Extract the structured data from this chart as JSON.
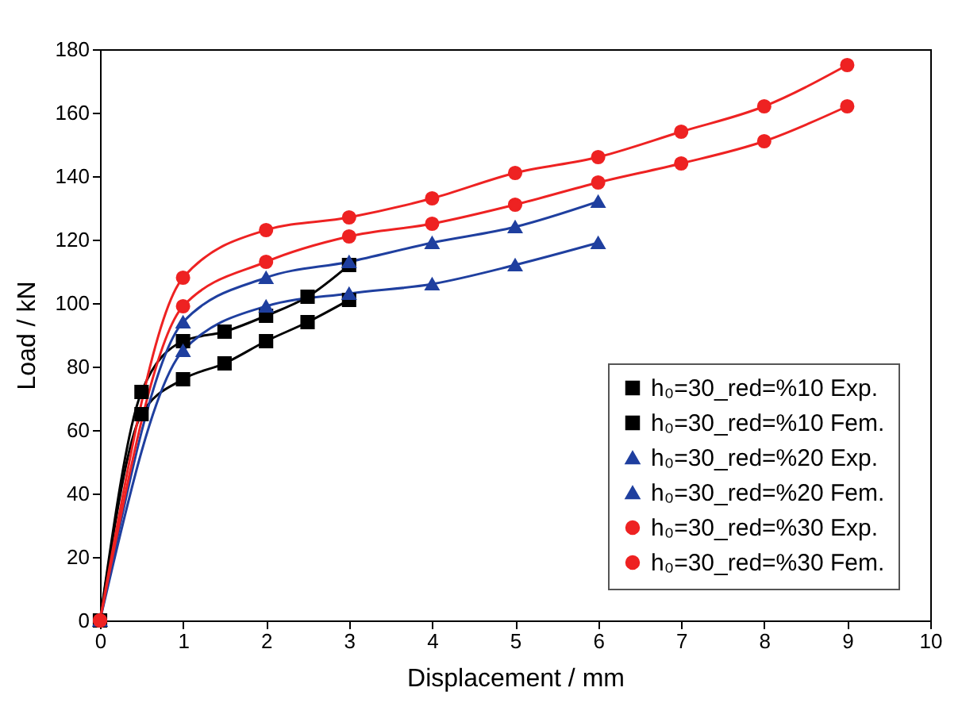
{
  "chart_data": {
    "type": "line",
    "xlabel": "Displacement / mm",
    "ylabel": "Load / kN",
    "xlim": [
      0,
      10
    ],
    "xticks": [
      0,
      1,
      2,
      3,
      4,
      5,
      6,
      7,
      8,
      9,
      10
    ],
    "ylim": [
      0,
      180
    ],
    "yticks": [
      0,
      20,
      40,
      60,
      80,
      100,
      120,
      140,
      160,
      180
    ],
    "grid": false,
    "legend": "bottom right",
    "line_style": "solid",
    "series": [
      {
        "name": "h₀=30_red=%10 Exp.",
        "color": "#000000",
        "marker": "square",
        "x": [
          0,
          0.5,
          1,
          1.5,
          2,
          2.5,
          3
        ],
        "values": [
          0,
          65,
          76,
          81,
          88,
          94,
          101
        ]
      },
      {
        "name": "h₀=30_red=%10 Fem.",
        "color": "#000000",
        "marker": "square",
        "x": [
          0,
          0.5,
          1,
          1.5,
          2,
          2.5,
          3
        ],
        "values": [
          0,
          72,
          88,
          91,
          96,
          102,
          112
        ]
      },
      {
        "name": "h₀=30_red=%20 Exp.",
        "color": "#1f3f9f",
        "marker": "triangle",
        "x": [
          0,
          1,
          2,
          3,
          4,
          5,
          6
        ],
        "values": [
          0,
          85,
          99,
          103,
          106,
          112,
          119
        ]
      },
      {
        "name": "h₀=30_red=%20 Fem.",
        "color": "#1f3f9f",
        "marker": "triangle",
        "x": [
          0,
          1,
          2,
          3,
          4,
          5,
          6
        ],
        "values": [
          0,
          94,
          108,
          113,
          119,
          124,
          132
        ]
      },
      {
        "name": "h₀=30_red=%30 Exp.",
        "color": "#ee2222",
        "marker": "circle",
        "x": [
          0,
          1,
          2,
          3,
          4,
          5,
          6,
          7,
          8,
          9
        ],
        "values": [
          0,
          99,
          113,
          121,
          125,
          131,
          138,
          144,
          151,
          162
        ]
      },
      {
        "name": "h₀=30_red=%30 Fem.",
        "color": "#ee2222",
        "marker": "circle",
        "x": [
          0,
          1,
          2,
          3,
          4,
          5,
          6,
          7,
          8,
          9
        ],
        "values": [
          0,
          108,
          123,
          127,
          133,
          141,
          146,
          154,
          162,
          175
        ]
      }
    ]
  }
}
